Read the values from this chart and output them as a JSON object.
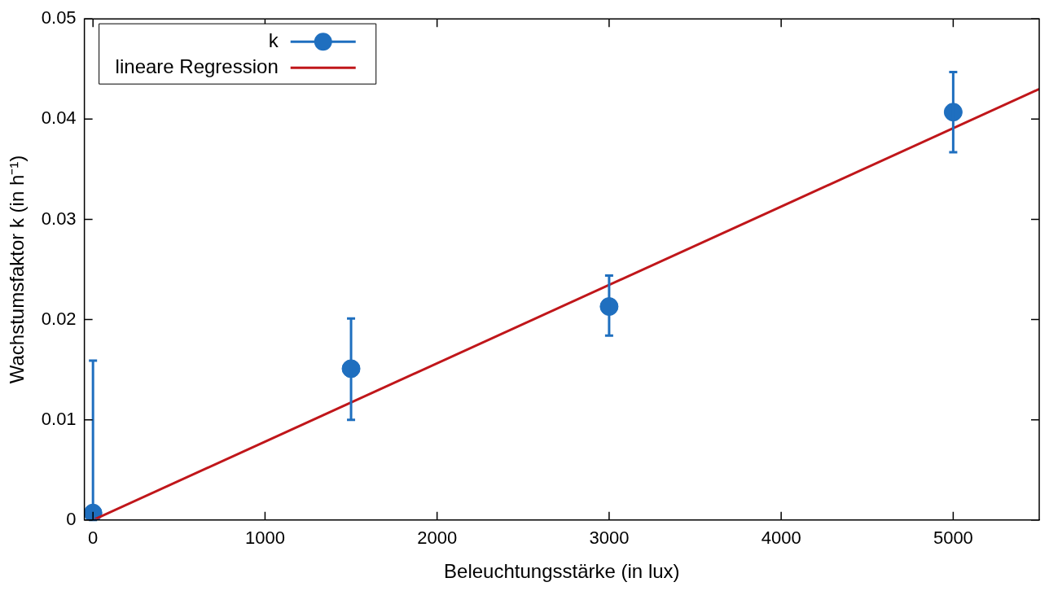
{
  "chart_data": {
    "type": "scatter",
    "xlabel": "Beleuchtungsstärke (in lux)",
    "ylabel": "Wachstumsfaktor k (in h⁻¹)",
    "xlim": [
      -50,
      5500
    ],
    "xticks": [
      0,
      1000,
      2000,
      3000,
      4000,
      5000
    ],
    "ylim": [
      0,
      0.05
    ],
    "yticks": [
      0,
      0.01,
      0.02,
      0.03,
      0.04,
      0.05
    ],
    "legend": "top left",
    "series": [
      {
        "name": "k",
        "type": "scatter",
        "marker": "circle",
        "color": "#1f6fbf",
        "x": [
          0,
          1500,
          3000,
          5000
        ],
        "values": [
          0.0007,
          0.0151,
          0.0213,
          0.0407
        ],
        "errors": [
          [
            0,
            0.0159
          ],
          [
            0.01,
            0.0201
          ],
          [
            0.0184,
            0.0244
          ],
          [
            0.0367,
            0.0447
          ]
        ]
      },
      {
        "name": "lineare Regression",
        "type": "line",
        "marker": "none",
        "color": "#c0161a",
        "line_style": "solid",
        "x": [
          0,
          5500
        ],
        "values": [
          0,
          0.043
        ]
      }
    ]
  }
}
